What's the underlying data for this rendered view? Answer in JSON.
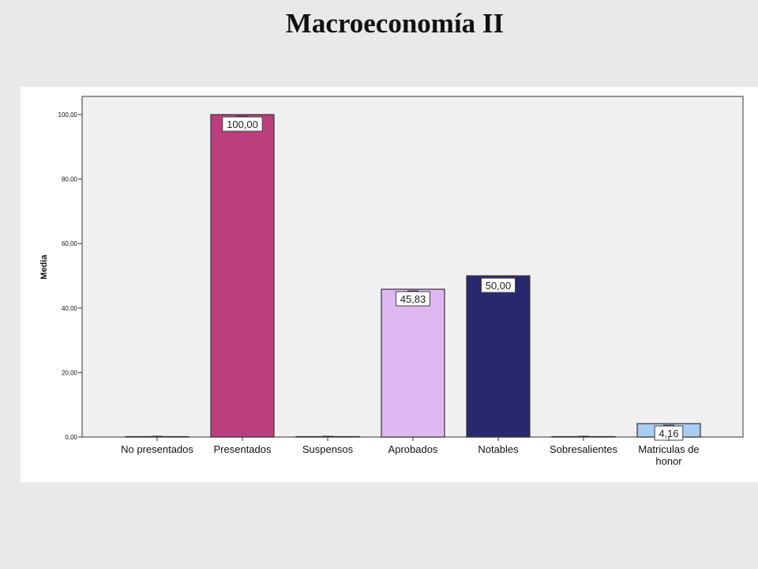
{
  "slide": {
    "title": "Macroeconomía  II"
  },
  "chart_data": {
    "type": "bar",
    "ylabel": "Media",
    "ylim": [
      0,
      100
    ],
    "yticks": [
      "0,00",
      "20,00",
      "40,00",
      "60,00",
      "80,00",
      "100,00"
    ],
    "ytick_values": [
      0,
      20,
      40,
      60,
      80,
      100
    ],
    "grid": false,
    "categories": [
      [
        "No presentados"
      ],
      [
        "Presentados"
      ],
      [
        "Suspensos"
      ],
      [
        "Aprobados"
      ],
      [
        "Notables"
      ],
      [
        "Sobresalientes"
      ],
      [
        "Matriculas de",
        "honor"
      ]
    ],
    "values": [
      0,
      100,
      0,
      45.83,
      50,
      0,
      4.16
    ],
    "value_labels": [
      "",
      "100,00",
      "",
      "45,83",
      "50,00",
      "",
      "4,16"
    ],
    "colors": [
      "#ffffff",
      "#bb3f7d",
      "#ffffff",
      "#dfb8f2",
      "#29286f",
      "#ffffff",
      "#a9cdf0"
    ],
    "plot_background": "#f0f0f0"
  }
}
